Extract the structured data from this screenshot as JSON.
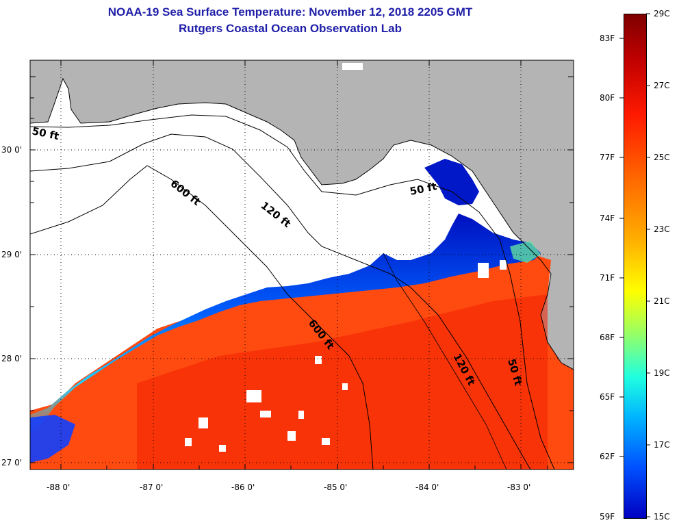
{
  "title": {
    "line1": "NOAA-19 Sea Surface Temperature:  November 12, 2018 2205 GMT",
    "line2": "Rutgers Coastal Ocean Observation Lab"
  },
  "map": {
    "lat_labels": [
      "30 0'",
      "29 0'",
      "28 0'",
      "27 0'"
    ],
    "lon_labels": [
      "-88 0'",
      "-87 0'",
      "-86 0'",
      "-85 0'",
      "-84 0'",
      "-83 0'"
    ],
    "contour_labels": [
      "50 ft",
      "600 ft",
      "120 ft",
      "50 ft",
      "600 ft",
      "120 ft",
      "50 ft"
    ],
    "colors": {
      "land": "#b4b4b4",
      "ocean_warm": "#ff4a10",
      "ocean_hot": "#f22000",
      "cool_front": "#0022cc",
      "cloud_mask": "#ffffff"
    }
  },
  "colorbar": {
    "fahrenheit_labels": [
      "83F",
      "80F",
      "77F",
      "74F",
      "71F",
      "68F",
      "65F",
      "62F",
      "59F"
    ],
    "celsius_labels": [
      "29C",
      "27C",
      "25C",
      "23C",
      "21C",
      "19C",
      "17C",
      "15C"
    ],
    "range_c": [
      15,
      29
    ],
    "range_f": [
      59,
      84
    ]
  }
}
